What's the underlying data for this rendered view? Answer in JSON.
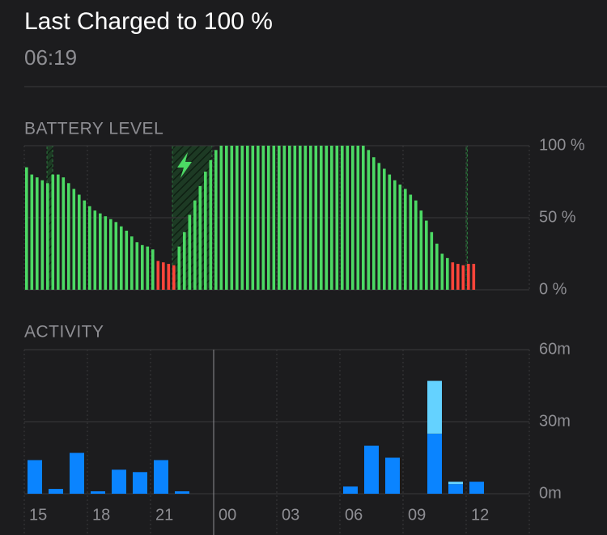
{
  "header": {
    "title": "Last Charged to 100 %",
    "subtitle": "06:19"
  },
  "chart_data": [
    {
      "type": "bar",
      "title": "BATTERY LEVEL",
      "x": [
        15,
        15.25,
        15.5,
        15.75,
        16,
        16.25,
        16.5,
        16.75,
        17,
        17.25,
        17.5,
        17.75,
        18,
        18.25,
        18.5,
        18.75,
        19,
        19.25,
        19.5,
        19.75,
        20,
        20.25,
        20.5,
        20.75,
        21,
        21.25,
        21.5,
        21.75,
        22,
        22.25,
        22.5,
        22.75,
        23,
        23.25,
        23.5,
        23.75,
        24,
        24.25,
        24.5,
        24.75,
        25,
        25.25,
        25.5,
        25.75,
        26,
        26.25,
        26.5,
        26.75,
        27,
        27.25,
        27.5,
        27.75,
        28,
        28.25,
        28.5,
        28.75,
        29,
        29.25,
        29.5,
        29.75,
        30,
        30.25,
        30.5,
        30.75,
        31,
        31.25,
        31.5,
        31.75,
        32,
        32.25,
        32.5,
        32.75,
        33,
        33.25,
        33.5,
        33.75,
        34,
        34.25,
        34.5,
        34.75,
        35,
        35.25,
        35.5,
        35.75,
        36,
        36.25
      ],
      "values": [
        85,
        80,
        78,
        76,
        74,
        80,
        80,
        78,
        74,
        70,
        66,
        62,
        58,
        55,
        53,
        51,
        49,
        47,
        44,
        41,
        37,
        33,
        31,
        30,
        28,
        20,
        19,
        18,
        17,
        30,
        40,
        52,
        62,
        72,
        82,
        90,
        97,
        100,
        100,
        100,
        100,
        100,
        100,
        100,
        100,
        100,
        100,
        100,
        100,
        100,
        100,
        100,
        100,
        100,
        100,
        100,
        100,
        100,
        100,
        100,
        100,
        100,
        100,
        100,
        100,
        97,
        92,
        88,
        84,
        80,
        76,
        73,
        70,
        66,
        62,
        55,
        48,
        40,
        32,
        25,
        22,
        19,
        18,
        17,
        18,
        18
      ],
      "color": "#4cd964",
      "low_color": "#ff453a",
      "low_battery_level": 20,
      "charging_periods": [
        [
          16.08,
          16.35
        ],
        [
          22.04,
          23.92
        ],
        [
          36.0,
          36.06
        ]
      ],
      "xlim": [
        15,
        39
      ],
      "ylim": [
        0,
        100
      ],
      "yticks": [
        {
          "value": 0,
          "label": "0 %"
        },
        {
          "value": 50,
          "label": "50 %"
        },
        {
          "value": 100,
          "label": "100 %"
        }
      ],
      "grid": true
    },
    {
      "type": "stacked_bar",
      "title": "ACTIVITY",
      "x": [
        15,
        16,
        17,
        18,
        19,
        20,
        21,
        22,
        23,
        24,
        25,
        26,
        27,
        28,
        29,
        30,
        31,
        32,
        33,
        34,
        35,
        36,
        37,
        38
      ],
      "series": [
        {
          "color": "#0a84ff",
          "values": [
            14,
            2,
            17,
            1,
            10,
            9,
            14,
            1,
            0,
            0,
            0,
            0,
            0,
            0,
            0,
            3,
            20,
            15,
            0,
            25,
            4,
            5,
            0,
            0
          ]
        },
        {
          "color": "#64d2ff",
          "values": [
            0,
            0,
            0,
            0,
            0,
            0,
            0,
            0,
            0,
            0,
            0,
            0,
            0,
            0,
            0,
            0,
            0,
            0,
            0,
            22,
            1,
            0,
            0,
            0
          ]
        }
      ],
      "xlim": [
        15,
        39
      ],
      "xticks": [
        15,
        18,
        21,
        {
          "value": 24,
          "label": "00"
        },
        {
          "value": 27,
          "label": "03"
        },
        {
          "value": 30,
          "label": "06"
        },
        {
          "value": 33,
          "label": "09"
        },
        {
          "value": 36,
          "label": "12"
        }
      ],
      "ylim": [
        0,
        60
      ],
      "yticks": [
        {
          "value": 0,
          "label": "0m"
        },
        {
          "value": 30,
          "label": "30m"
        },
        {
          "value": 60,
          "label": "60m"
        }
      ],
      "grid": true
    }
  ]
}
